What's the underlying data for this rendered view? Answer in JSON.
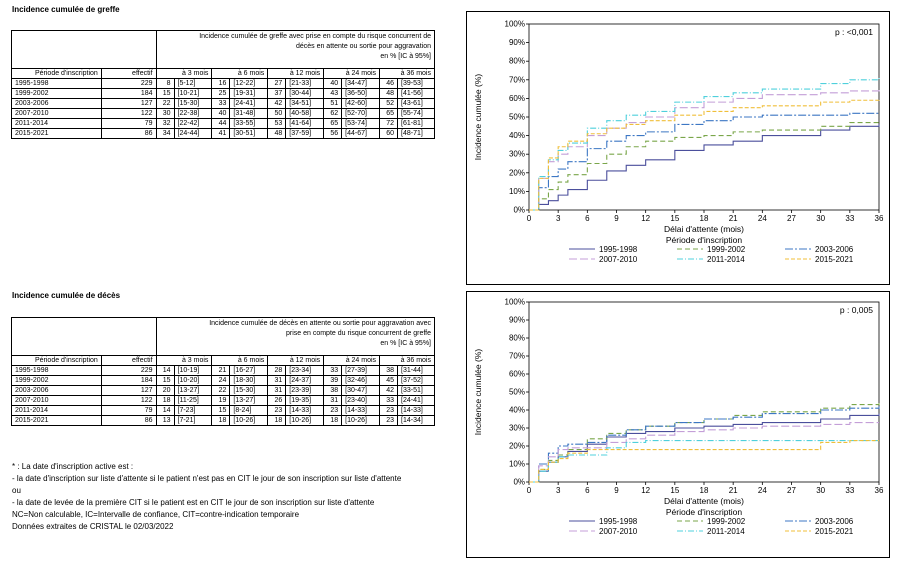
{
  "greffe": {
    "title": "Incidence cumulée de greffe",
    "header": {
      "main_line1": "Incidence cumulée de greffe avec prise en compte du risque concurrent de",
      "main_line2": "décès en attente ou sortie pour aggravation",
      "unit": "en % [IC à 95%]",
      "col_period": "Période d'inscription",
      "col_effectif": "effectif",
      "col_3": "à 3 mois",
      "col_6": "à 6 mois",
      "col_12": "à 12 mois",
      "col_24": "à 24 mois",
      "col_36": "à 36 mois"
    },
    "rows": [
      {
        "period": "1995-1998",
        "effectif": "229",
        "v3": "8",
        "c3": "[5-12]",
        "v6": "16",
        "c6": "[12-22]",
        "v12": "27",
        "c12": "[21-33]",
        "v24": "40",
        "c24": "[34-47]",
        "v36": "46",
        "c36": "[39-53]"
      },
      {
        "period": "1999-2002",
        "effectif": "184",
        "v3": "15",
        "c3": "[10-21]",
        "v6": "25",
        "c6": "[19-31]",
        "v12": "37",
        "c12": "[30-44]",
        "v24": "43",
        "c24": "[36-50]",
        "v36": "48",
        "c36": "[41-56]"
      },
      {
        "period": "2003-2006",
        "effectif": "127",
        "v3": "22",
        "c3": "[15-30]",
        "v6": "33",
        "c6": "[24-41]",
        "v12": "42",
        "c12": "[34-51]",
        "v24": "51",
        "c24": "[42-60]",
        "v36": "52",
        "c36": "[43-61]"
      },
      {
        "period": "2007-2010",
        "effectif": "122",
        "v3": "30",
        "c3": "[22-38]",
        "v6": "40",
        "c6": "[31-48]",
        "v12": "50",
        "c12": "[40-58]",
        "v24": "62",
        "c24": "[52-70]",
        "v36": "65",
        "c36": "[55-74]"
      },
      {
        "period": "2011-2014",
        "effectif": "79",
        "v3": "32",
        "c3": "[22-42]",
        "v6": "44",
        "c6": "[33-55]",
        "v12": "53",
        "c12": "[41-64]",
        "v24": "65",
        "c24": "[53-74]",
        "v36": "72",
        "c36": "[61-81]"
      },
      {
        "period": "2015-2021",
        "effectif": "86",
        "v3": "34",
        "c3": "[24-44]",
        "v6": "41",
        "c6": "[30-51]",
        "v12": "48",
        "c12": "[37-59]",
        "v24": "56",
        "c24": "[44-67]",
        "v36": "60",
        "c36": "[48-71]"
      }
    ]
  },
  "deces": {
    "title": "Incidence cumulée de décès",
    "header": {
      "main_line1": "Incidence cumulée de décès en attente ou sortie pour aggravation avec",
      "main_line2": "prise en compte du risque concurrent de greffe",
      "unit": "en % [IC à 95%]",
      "col_period": "Période d'inscription",
      "col_effectif": "effectif",
      "col_3": "à 3 mois",
      "col_6": "à 6 mois",
      "col_12": "à 12 mois",
      "col_24": "à 24 mois",
      "col_36": "à 36 mois"
    },
    "rows": [
      {
        "period": "1995-1998",
        "effectif": "229",
        "v3": "14",
        "c3": "[10-19]",
        "v6": "21",
        "c6": "[16-27]",
        "v12": "28",
        "c12": "[23-34]",
        "v24": "33",
        "c24": "[27-39]",
        "v36": "38",
        "c36": "[31-44]"
      },
      {
        "period": "1999-2002",
        "effectif": "184",
        "v3": "15",
        "c3": "[10-20]",
        "v6": "24",
        "c6": "[18-30]",
        "v12": "31",
        "c12": "[24-37]",
        "v24": "39",
        "c24": "[32-46]",
        "v36": "45",
        "c36": "[37-52]"
      },
      {
        "period": "2003-2006",
        "effectif": "127",
        "v3": "20",
        "c3": "[13-27]",
        "v6": "22",
        "c6": "[15-30]",
        "v12": "31",
        "c12": "[23-39]",
        "v24": "38",
        "c24": "[30-47]",
        "v36": "42",
        "c36": "[33-51]"
      },
      {
        "period": "2007-2010",
        "effectif": "122",
        "v3": "18",
        "c3": "[11-25]",
        "v6": "19",
        "c6": "[13-27]",
        "v12": "26",
        "c12": "[19-35]",
        "v24": "31",
        "c24": "[23-40]",
        "v36": "33",
        "c36": "[24-41]"
      },
      {
        "period": "2011-2014",
        "effectif": "79",
        "v3": "14",
        "c3": "[7-23]",
        "v6": "15",
        "c6": "[8-24]",
        "v12": "23",
        "c12": "[14-33]",
        "v24": "23",
        "c24": "[14-33]",
        "v36": "23",
        "c36": "[14-33]"
      },
      {
        "period": "2015-2021",
        "effectif": "86",
        "v3": "13",
        "c3": "[7-21]",
        "v6": "18",
        "c6": "[10-26]",
        "v12": "18",
        "c12": "[10-26]",
        "v24": "18",
        "c24": "[10-26]",
        "v36": "23",
        "c36": "[14-34]"
      }
    ]
  },
  "notes": [
    "* : La date d'inscription active est :",
    "- la date d'inscription sur liste d'attente si le patient n'est pas en CIT le jour de son inscription sur liste d'attente",
    "ou",
    "- la date de levée de la première CIT si le patient est en CIT le jour de son inscription sur liste d'attente",
    "NC=Non calculable, IC=Intervalle de confiance, CIT=contre-indication temporaire",
    "Données extraites de CRISTAL le 02/03/2022"
  ],
  "chart_data": [
    {
      "type": "line",
      "step": true,
      "annotation": "p : <0,001",
      "xlabel": "Délai d'attente (mois)",
      "ylabel": "Incidence cumulée (%)",
      "xlim": [
        0,
        36
      ],
      "ylim": [
        0,
        100
      ],
      "x_ticks": [
        "0",
        "3",
        "6",
        "9",
        "12",
        "15",
        "18",
        "21",
        "24",
        "27",
        "30",
        "33",
        "36"
      ],
      "y_ticks": [
        "0%",
        "10%",
        "20%",
        "30%",
        "40%",
        "50%",
        "60%",
        "70%",
        "80%",
        "90%",
        "100%"
      ],
      "legend_title": "Période d'inscription",
      "legend_position": "bottom",
      "series": [
        {
          "name": "1995-1998",
          "color": "#4b4f9c",
          "dash": "",
          "x": [
            0,
            1,
            2,
            3,
            4,
            6,
            8,
            10,
            12,
            15,
            18,
            21,
            24,
            30,
            33,
            36
          ],
          "y": [
            0,
            3,
            5,
            8,
            11,
            16,
            21,
            24,
            27,
            32,
            35,
            37,
            40,
            43,
            45,
            46
          ]
        },
        {
          "name": "1999-2002",
          "color": "#7aa64a",
          "dash": "5,3",
          "x": [
            0,
            1,
            2,
            3,
            4,
            6,
            8,
            10,
            12,
            15,
            18,
            21,
            24,
            30,
            33,
            36
          ],
          "y": [
            0,
            6,
            11,
            15,
            19,
            25,
            30,
            34,
            37,
            39,
            40,
            42,
            43,
            45,
            47,
            48
          ]
        },
        {
          "name": "2003-2006",
          "color": "#3d77c4",
          "dash": "8,2,2,2",
          "x": [
            0,
            1,
            2,
            3,
            4,
            6,
            8,
            10,
            12,
            15,
            18,
            21,
            24,
            30,
            33,
            36
          ],
          "y": [
            0,
            12,
            18,
            22,
            26,
            33,
            37,
            40,
            42,
            46,
            48,
            50,
            51,
            51,
            52,
            52
          ]
        },
        {
          "name": "2007-2010",
          "color": "#c49fd8",
          "dash": "8,3",
          "x": [
            0,
            1,
            2,
            3,
            4,
            6,
            8,
            10,
            12,
            15,
            18,
            21,
            24,
            30,
            33,
            36
          ],
          "y": [
            0,
            17,
            26,
            30,
            34,
            40,
            44,
            47,
            50,
            55,
            58,
            60,
            62,
            63,
            64,
            65
          ]
        },
        {
          "name": "2011-2014",
          "color": "#4fd0dc",
          "dash": "6,2,1,2",
          "x": [
            0,
            1,
            2,
            3,
            4,
            6,
            8,
            10,
            12,
            15,
            18,
            21,
            24,
            30,
            33,
            36
          ],
          "y": [
            0,
            18,
            27,
            32,
            36,
            44,
            48,
            51,
            53,
            58,
            61,
            63,
            65,
            68,
            70,
            72
          ]
        },
        {
          "name": "2015-2021",
          "color": "#f0bf3a",
          "dash": "4,2",
          "x": [
            0,
            1,
            2,
            3,
            4,
            6,
            8,
            10,
            12,
            15,
            18,
            21,
            24,
            30,
            33,
            36
          ],
          "y": [
            0,
            17,
            28,
            34,
            37,
            41,
            44,
            46,
            48,
            51,
            53,
            55,
            56,
            58,
            59,
            60
          ]
        }
      ]
    },
    {
      "type": "line",
      "step": true,
      "annotation": "p : 0,005",
      "xlabel": "Délai d'attente (mois)",
      "ylabel": "Incidence cumulée (%)",
      "xlim": [
        0,
        36
      ],
      "ylim": [
        0,
        100
      ],
      "x_ticks": [
        "0",
        "3",
        "6",
        "9",
        "12",
        "15",
        "18",
        "21",
        "24",
        "27",
        "30",
        "33",
        "36"
      ],
      "y_ticks": [
        "0%",
        "10%",
        "20%",
        "30%",
        "40%",
        "50%",
        "60%",
        "70%",
        "80%",
        "90%",
        "100%"
      ],
      "legend_title": "Période d'inscription",
      "legend_position": "bottom",
      "series": [
        {
          "name": "1995-1998",
          "color": "#4b4f9c",
          "dash": "",
          "x": [
            0,
            1,
            2,
            3,
            4,
            6,
            8,
            10,
            12,
            15,
            18,
            21,
            24,
            30,
            33,
            36
          ],
          "y": [
            0,
            6,
            11,
            14,
            17,
            21,
            25,
            27,
            28,
            30,
            31,
            32,
            33,
            35,
            37,
            38
          ]
        },
        {
          "name": "1999-2002",
          "color": "#7aa64a",
          "dash": "5,3",
          "x": [
            0,
            1,
            2,
            3,
            4,
            6,
            8,
            10,
            12,
            15,
            18,
            21,
            24,
            30,
            33,
            36
          ],
          "y": [
            0,
            7,
            12,
            15,
            18,
            24,
            27,
            29,
            31,
            33,
            35,
            37,
            39,
            41,
            43,
            45
          ]
        },
        {
          "name": "2003-2006",
          "color": "#3d77c4",
          "dash": "8,2,2,2",
          "x": [
            0,
            1,
            2,
            3,
            4,
            6,
            8,
            10,
            12,
            15,
            18,
            21,
            24,
            30,
            33,
            36
          ],
          "y": [
            0,
            10,
            16,
            20,
            21,
            22,
            26,
            29,
            31,
            33,
            35,
            36,
            38,
            40,
            41,
            42
          ]
        },
        {
          "name": "2007-2010",
          "color": "#c49fd8",
          "dash": "8,3",
          "x": [
            0,
            1,
            2,
            3,
            4,
            6,
            8,
            10,
            12,
            15,
            18,
            21,
            24,
            30,
            33,
            36
          ],
          "y": [
            0,
            9,
            14,
            18,
            19,
            19,
            22,
            24,
            26,
            28,
            29,
            30,
            31,
            32,
            33,
            33
          ]
        },
        {
          "name": "2011-2014",
          "color": "#4fd0dc",
          "dash": "6,2,1,2",
          "x": [
            0,
            1,
            2,
            3,
            4,
            6,
            8,
            10,
            12,
            15,
            18,
            21,
            24,
            30,
            33,
            36
          ],
          "y": [
            0,
            6,
            11,
            14,
            15,
            15,
            19,
            22,
            23,
            23,
            23,
            23,
            23,
            23,
            23,
            23
          ]
        },
        {
          "name": "2015-2021",
          "color": "#f0bf3a",
          "dash": "4,2",
          "x": [
            0,
            1,
            2,
            3,
            4,
            6,
            8,
            10,
            12,
            15,
            18,
            21,
            24,
            30,
            33,
            36
          ],
          "y": [
            0,
            7,
            11,
            13,
            16,
            18,
            18,
            18,
            18,
            18,
            18,
            18,
            18,
            22,
            23,
            23
          ]
        }
      ]
    }
  ]
}
